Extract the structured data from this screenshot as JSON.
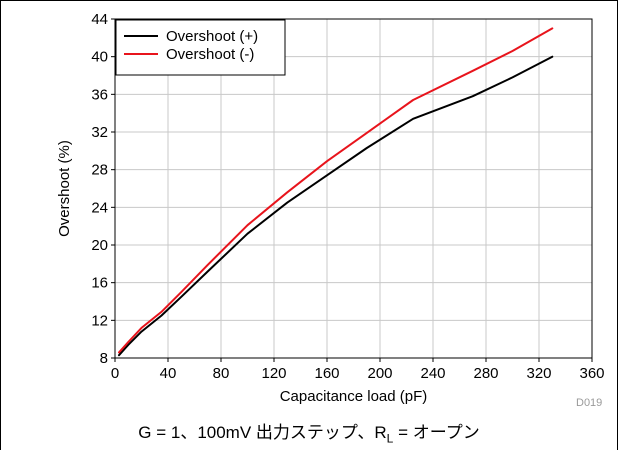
{
  "chart_data": {
    "type": "line",
    "xlabel": "Capacitance load (pF)",
    "ylabel": "Overshoot (%)",
    "xlim": [
      0,
      360
    ],
    "ylim": [
      8,
      44
    ],
    "x_ticks": [
      0,
      40,
      80,
      120,
      160,
      200,
      240,
      280,
      320,
      360
    ],
    "y_ticks": [
      8,
      12,
      16,
      20,
      24,
      28,
      32,
      36,
      40,
      44
    ],
    "grid": true,
    "legend_position": "top-left",
    "series": [
      {
        "name": "Overshoot (+)",
        "color": "#000000",
        "x": [
          3,
          10,
          20,
          35,
          50,
          70,
          100,
          130,
          160,
          190,
          225,
          270,
          300,
          330
        ],
        "y": [
          8.3,
          9.4,
          10.8,
          12.5,
          14.5,
          17.2,
          21.2,
          24.5,
          27.4,
          30.3,
          33.4,
          35.8,
          37.8,
          40.0
        ]
      },
      {
        "name": "Overshoot (-)",
        "color": "#e8141c",
        "x": [
          3,
          10,
          20,
          35,
          50,
          70,
          100,
          130,
          160,
          190,
          225,
          270,
          300,
          330
        ],
        "y": [
          8.6,
          9.7,
          11.2,
          12.9,
          15.0,
          17.9,
          22.1,
          25.6,
          28.9,
          31.9,
          35.4,
          38.5,
          40.6,
          43.0
        ]
      }
    ],
    "figure_id": "D019",
    "caption": {
      "prefix": "G = 1、100mV 出力ステップ、R",
      "sub": "L",
      "suffix": " = オープン"
    }
  }
}
